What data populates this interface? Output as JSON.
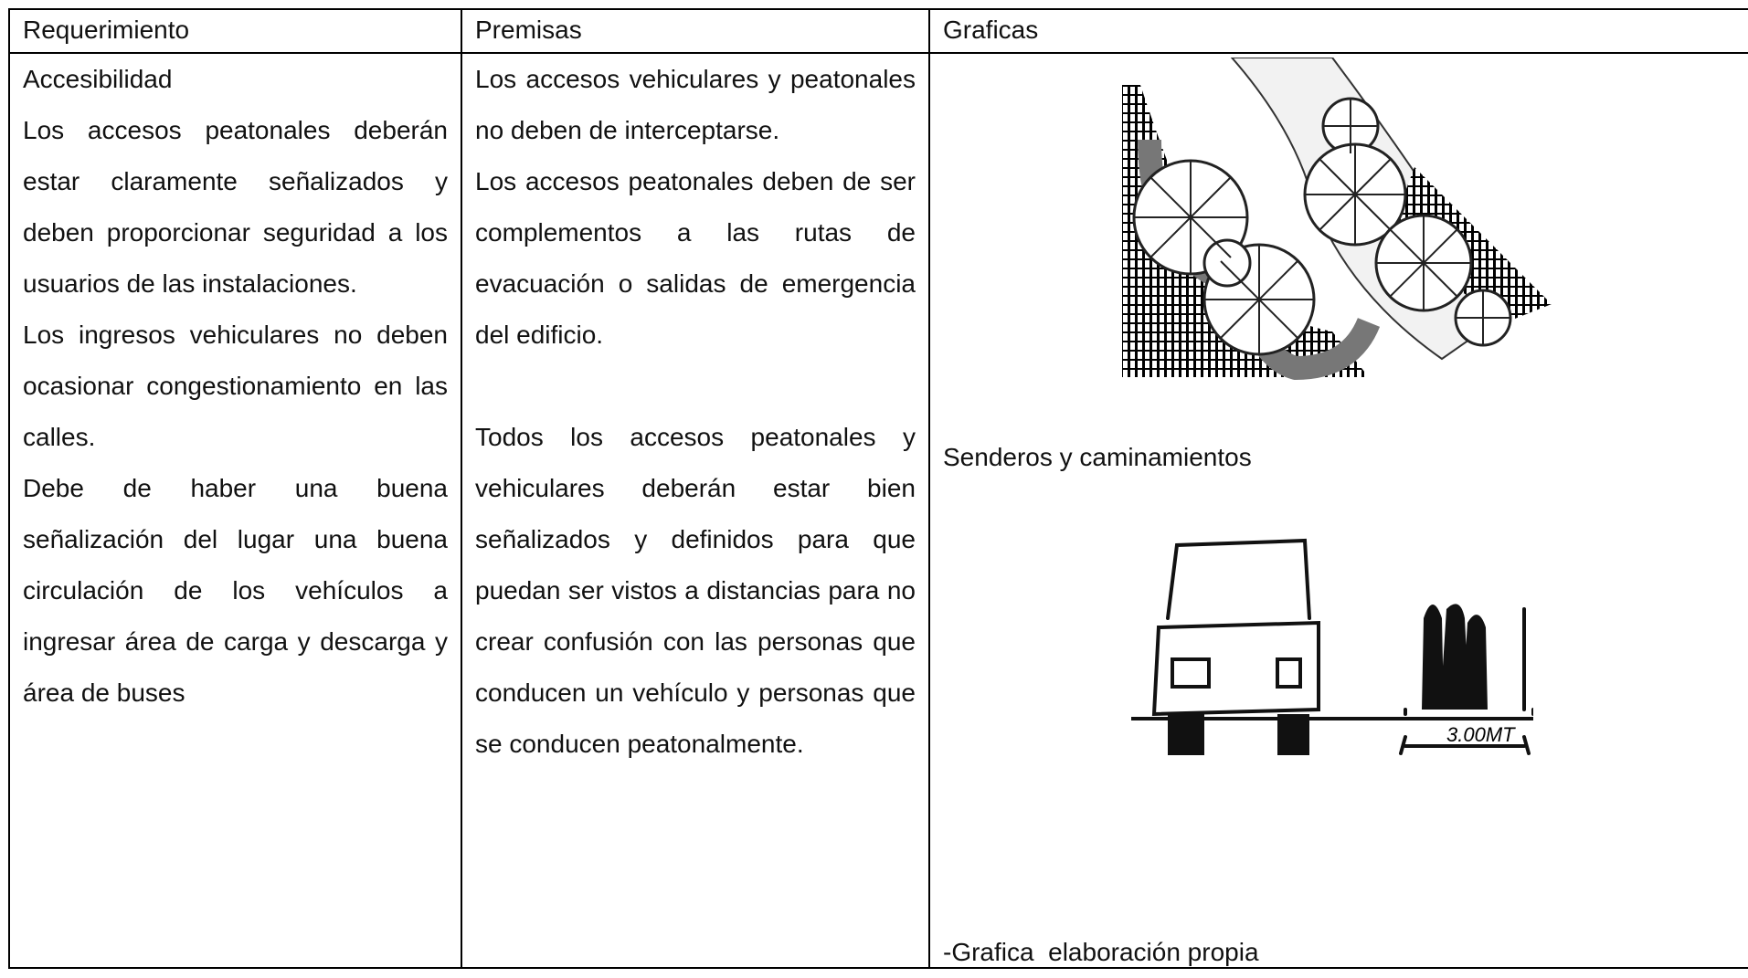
{
  "table": {
    "header": [
      "Requerimiento",
      "Premisas",
      "Graficas"
    ],
    "requerimiento": [
      "Accesibilidad",
      "Los accesos peatonales deberán estar claramente señalizados y deben proporcionar seguridad a los usuarios de las instalaciones.",
      "Los ingresos vehiculares no deben ocasionar congestionamiento en las calles.",
      "Debe de haber una buena señalización del lugar una buena circulación de los vehículos a ingresar área de carga y descarga y área de buses"
    ],
    "premisas": [
      "Los accesos vehiculares y peatonales no deben de interceptarse.",
      "Los accesos peatonales deben de ser complementos a las rutas de evacuación o salidas de emergencia del edificio.",
      "Todos los accesos peatonales y vehiculares deberán estar bien señalizados y definidos para que puedan ser vistos a distancias para no crear confusión con las personas que conducen un vehículo y personas que se conducen peatonalmente."
    ],
    "graficas": {
      "caption_1": "Senderos y caminamientos",
      "sketch_label": "3.00MT",
      "caption_2": "-Grafica  elaboración propia"
    }
  }
}
